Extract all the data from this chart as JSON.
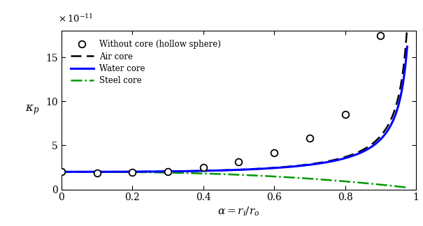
{
  "title": "",
  "xlabel": "$\\alpha=r_i/r_o$",
  "ylabel": "$\\kappa_p$",
  "ylim": [
    0,
    1.8e-10
  ],
  "xlim": [
    0,
    1.0
  ],
  "yticks": [
    0,
    5e-11,
    1e-10,
    1.5e-10
  ],
  "ytick_labels": [
    "0",
    "5",
    "10",
    "15"
  ],
  "xticks": [
    0,
    0.2,
    0.4,
    0.6,
    0.8,
    1.0
  ],
  "xtick_labels": [
    "0",
    "0.2",
    "0.4",
    "0.6",
    "0.8",
    "1"
  ],
  "exponent_label": "x 10$^{-11}$",
  "legend_entries": [
    "Without core (hollow sphere)",
    "Air core",
    "Water core",
    "Steel core"
  ],
  "circ_alpha": [
    0.0,
    0.1,
    0.2,
    0.3,
    0.4,
    0.5,
    0.6,
    0.7,
    0.8,
    0.9
  ],
  "circ_vals": [
    2.0,
    1.9,
    1.95,
    2.0,
    2.5,
    3.1,
    4.2,
    5.8,
    8.5,
    17.5
  ],
  "figsize": [
    6.05,
    3.24
  ],
  "dpi": 100
}
